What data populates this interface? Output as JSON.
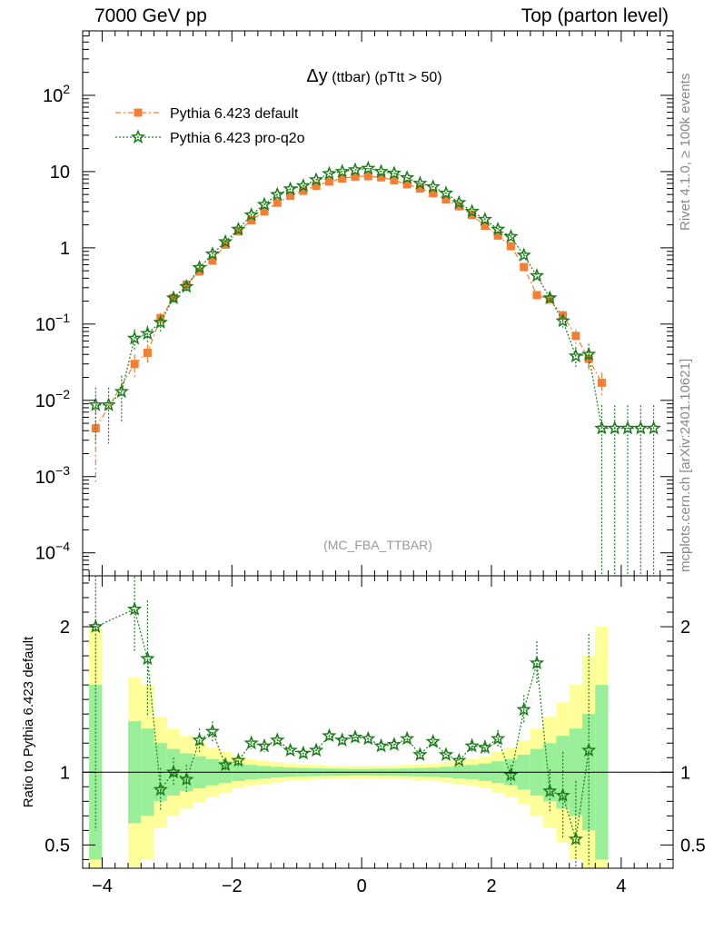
{
  "header": {
    "left": "7000 GeV pp",
    "right": "Top (parton level)"
  },
  "side_labels": {
    "top": "Rivet 4.1.0, ≥ 100k events",
    "bottom": "mcplots.cern.ch [arXiv:2401.10621]"
  },
  "colors": {
    "default": "#f47e34",
    "proq2o": "#1a7d1a",
    "band_inner": "#99ee99",
    "band_outer": "#ffff99",
    "grey": "#999999"
  },
  "chart_data": [
    {
      "type": "line",
      "title_symbol": "Δy",
      "title_rest": " (ttbar) (pTtt > 50)",
      "watermark": "(MC_FBA_TTBAR)",
      "yscale": "log",
      "xlim": [
        -4.3,
        4.8
      ],
      "ylim": [
        5e-05,
        700
      ],
      "y_ticks": [
        {
          "v": 0.0001,
          "base": "10",
          "exp": "−4"
        },
        {
          "v": 0.001,
          "base": "10",
          "exp": "−3"
        },
        {
          "v": 0.01,
          "base": "10",
          "exp": "−2"
        },
        {
          "v": 0.1,
          "base": "10",
          "exp": "−1"
        },
        {
          "v": 1,
          "base": "1",
          "exp": ""
        },
        {
          "v": 10,
          "base": "10",
          "exp": ""
        },
        {
          "v": 100,
          "base": "10",
          "exp": "2"
        }
      ],
      "legend_position": "top-left",
      "series": [
        {
          "name": "Pythia 6.423 default",
          "marker": "square",
          "x": [
            -4.1,
            -3.5,
            -3.3,
            -3.1,
            -2.9,
            -2.7,
            -2.5,
            -2.3,
            -2.1,
            -1.9,
            -1.7,
            -1.5,
            -1.3,
            -1.1,
            -0.9,
            -0.7,
            -0.5,
            -0.3,
            -0.1,
            0.1,
            0.3,
            0.5,
            0.7,
            0.9,
            1.1,
            1.3,
            1.5,
            1.7,
            1.9,
            2.1,
            2.3,
            2.5,
            2.7,
            2.9,
            3.1,
            3.3,
            3.5,
            3.7
          ],
          "y": [
            0.0043,
            0.03,
            0.042,
            0.12,
            0.22,
            0.33,
            0.49,
            0.68,
            1.1,
            1.65,
            2.3,
            3.0,
            3.9,
            4.8,
            5.6,
            6.5,
            7.4,
            8.1,
            8.6,
            8.7,
            8.4,
            7.7,
            6.8,
            6.0,
            5.2,
            4.3,
            3.5,
            2.7,
            1.95,
            1.45,
            1.05,
            0.56,
            0.24,
            0.21,
            0.13,
            0.07,
            0.035,
            0.017
          ],
          "err": [
            0.0035,
            0.01,
            0.012,
            0.02,
            0.02,
            0.03,
            0.03,
            0.04,
            0.05,
            0.06,
            0.07,
            0.08,
            0.1,
            0.1,
            0.11,
            0.12,
            0.13,
            0.13,
            0.14,
            0.14,
            0.14,
            0.13,
            0.12,
            0.12,
            0.11,
            0.1,
            0.09,
            0.08,
            0.07,
            0.06,
            0.05,
            0.04,
            0.025,
            0.025,
            0.02,
            0.015,
            0.01,
            0.006
          ]
        },
        {
          "name": "Pythia 6.423 pro-q2o",
          "marker": "star",
          "x": [
            -4.1,
            -3.9,
            -3.7,
            -3.5,
            -3.3,
            -3.1,
            -2.9,
            -2.7,
            -2.5,
            -2.3,
            -2.1,
            -1.9,
            -1.7,
            -1.5,
            -1.3,
            -1.1,
            -0.9,
            -0.7,
            -0.5,
            -0.3,
            -0.1,
            0.1,
            0.3,
            0.5,
            0.7,
            0.9,
            1.1,
            1.3,
            1.5,
            1.7,
            1.9,
            2.1,
            2.3,
            2.5,
            2.7,
            2.9,
            3.1,
            3.3,
            3.5,
            3.7,
            3.9,
            4.1,
            4.3,
            4.5
          ],
          "y": [
            0.0087,
            0.0087,
            0.013,
            0.065,
            0.075,
            0.105,
            0.22,
            0.31,
            0.55,
            0.83,
            1.2,
            1.75,
            2.7,
            3.7,
            5.0,
            5.9,
            6.5,
            7.8,
            9.4,
            10.0,
            10.5,
            11.0,
            10.0,
            9.5,
            8.3,
            7.0,
            6.3,
            5.2,
            3.9,
            3.0,
            2.35,
            1.75,
            1.4,
            0.8,
            0.43,
            0.22,
            0.11,
            0.038,
            0.04,
            0.0043,
            0.0043,
            0.0043,
            0.0043,
            0.0043
          ],
          "err": [
            0.006,
            0.006,
            0.008,
            0.02,
            0.02,
            0.025,
            0.03,
            0.04,
            0.05,
            0.06,
            0.07,
            0.08,
            0.1,
            0.11,
            0.13,
            0.14,
            0.15,
            0.16,
            0.18,
            0.18,
            0.19,
            0.19,
            0.18,
            0.18,
            0.17,
            0.16,
            0.15,
            0.13,
            0.12,
            0.11,
            0.09,
            0.08,
            0.07,
            0.05,
            0.035,
            0.025,
            0.02,
            0.012,
            0.015,
            0.0043,
            0.0043,
            0.0043,
            0.0043,
            0.0043
          ]
        }
      ]
    },
    {
      "type": "line",
      "ylabel": "Ratio to Pythia 6.423 default",
      "xlim": [
        -4.3,
        4.8
      ],
      "ylim": [
        0.34,
        2.35
      ],
      "reference_line": 1,
      "x_ticks": [
        {
          "v": -4,
          "label": "−4"
        },
        {
          "v": -2,
          "label": "−2"
        },
        {
          "v": 0,
          "label": "0"
        },
        {
          "v": 2,
          "label": "2"
        },
        {
          "v": 4,
          "label": "4"
        }
      ],
      "y_ticks": [
        {
          "v": 0.5,
          "label": "0.5"
        },
        {
          "v": 1,
          "label": "1"
        },
        {
          "v": 2,
          "label": "2"
        }
      ],
      "bands": {
        "bin_edges": [
          -4.2,
          -4.0,
          -3.8,
          -3.6,
          -3.4,
          -3.2,
          -3.0,
          -2.8,
          -2.6,
          -2.4,
          -2.2,
          -2.0,
          -1.8,
          -1.6,
          -1.4,
          -1.2,
          -1.0,
          -0.8,
          -0.6,
          -0.4,
          -0.2,
          0.0,
          0.2,
          0.4,
          0.6,
          0.8,
          1.0,
          1.2,
          1.4,
          1.6,
          1.8,
          2.0,
          2.2,
          2.4,
          2.6,
          2.8,
          3.0,
          3.2,
          3.4,
          3.6,
          3.8
        ],
        "inner": [
          0.6,
          0.0,
          0.0,
          0.35,
          0.3,
          0.2,
          0.16,
          0.13,
          0.11,
          0.09,
          0.075,
          0.06,
          0.05,
          0.043,
          0.037,
          0.032,
          0.029,
          0.027,
          0.025,
          0.024,
          0.023,
          0.023,
          0.024,
          0.025,
          0.027,
          0.029,
          0.032,
          0.037,
          0.043,
          0.05,
          0.06,
          0.075,
          0.09,
          0.12,
          0.16,
          0.2,
          0.25,
          0.3,
          0.4,
          0.6
        ],
        "outer": [
          0.99,
          0.0,
          0.0,
          0.65,
          0.6,
          0.38,
          0.3,
          0.25,
          0.21,
          0.17,
          0.14,
          0.11,
          0.09,
          0.08,
          0.07,
          0.06,
          0.055,
          0.05,
          0.047,
          0.045,
          0.044,
          0.044,
          0.045,
          0.047,
          0.05,
          0.055,
          0.06,
          0.07,
          0.08,
          0.09,
          0.11,
          0.14,
          0.17,
          0.22,
          0.3,
          0.38,
          0.48,
          0.6,
          0.8,
          1.0
        ]
      },
      "series": [
        {
          "name": "Pythia 6.423 pro-q2o / default",
          "x": [
            -4.1,
            -3.5,
            -3.3,
            -3.1,
            -2.9,
            -2.7,
            -2.5,
            -2.3,
            -2.1,
            -1.9,
            -1.7,
            -1.5,
            -1.3,
            -1.1,
            -0.9,
            -0.7,
            -0.5,
            -0.3,
            -0.1,
            0.1,
            0.3,
            0.5,
            0.7,
            0.9,
            1.1,
            1.3,
            1.5,
            1.7,
            1.9,
            2.1,
            2.3,
            2.5,
            2.7,
            2.9,
            3.1,
            3.3,
            3.5
          ],
          "y": [
            2.0,
            2.12,
            1.78,
            0.88,
            1.0,
            0.95,
            1.22,
            1.28,
            1.05,
            1.08,
            1.2,
            1.18,
            1.22,
            1.15,
            1.13,
            1.15,
            1.25,
            1.22,
            1.24,
            1.23,
            1.18,
            1.19,
            1.23,
            1.12,
            1.21,
            1.12,
            1.08,
            1.18,
            1.17,
            1.23,
            0.98,
            1.43,
            1.75,
            0.87,
            0.84,
            0.54,
            1.15
          ],
          "err": [
            1.4,
            0.3,
            0.4,
            0.15,
            0.1,
            0.1,
            0.08,
            0.07,
            0.05,
            0.05,
            0.04,
            0.04,
            0.035,
            0.035,
            0.03,
            0.03,
            0.03,
            0.03,
            0.03,
            0.03,
            0.03,
            0.03,
            0.03,
            0.03,
            0.035,
            0.035,
            0.04,
            0.05,
            0.05,
            0.06,
            0.07,
            0.1,
            0.15,
            0.15,
            0.3,
            0.4,
            0.8
          ]
        }
      ]
    }
  ]
}
